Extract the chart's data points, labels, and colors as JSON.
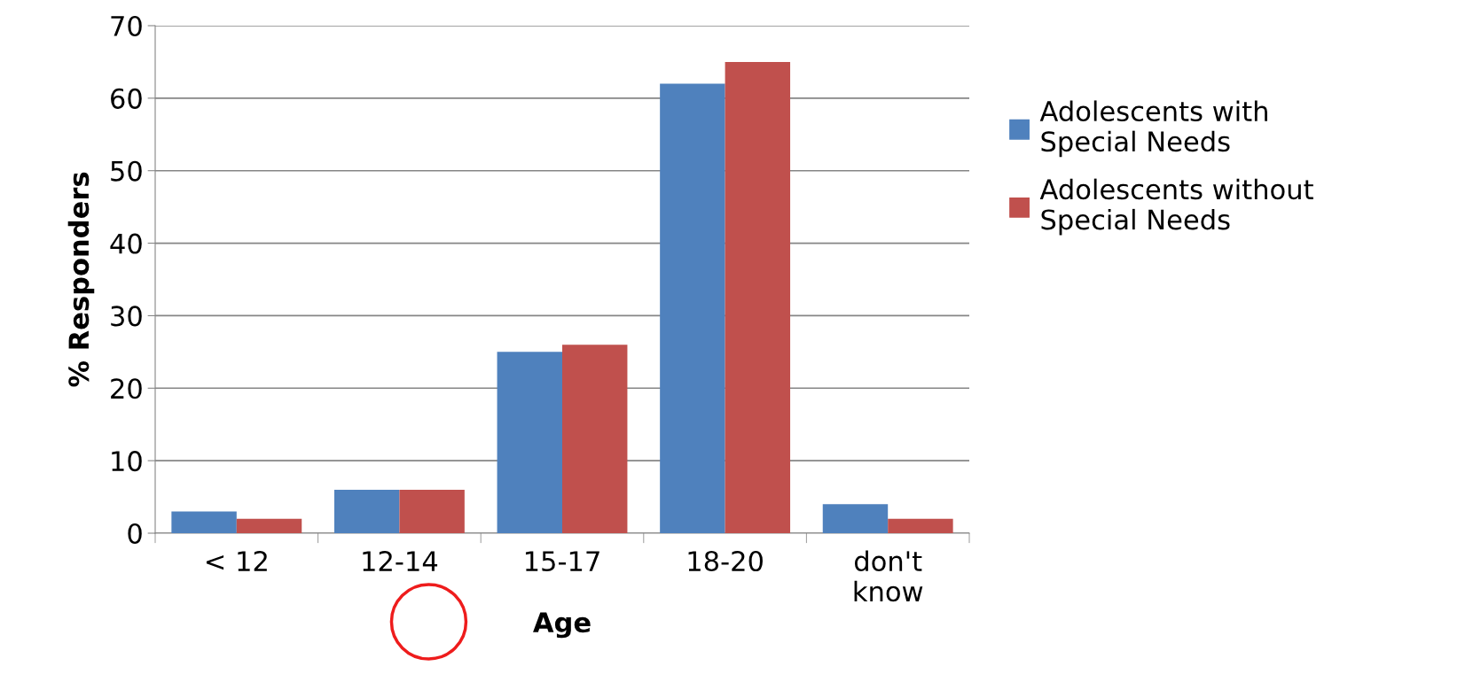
{
  "chart_data": {
    "type": "bar",
    "xlabel": "Age",
    "ylabel": "% Responders",
    "categories": [
      "< 12",
      "12-14",
      "15-17",
      "18-20",
      "don't know"
    ],
    "series": [
      {
        "name": "Adolescents with Special Needs",
        "color": "#4f81bd",
        "values": [
          3,
          6,
          25,
          62,
          4
        ]
      },
      {
        "name": "Adolescents without Special Needs",
        "color": "#c0504d",
        "values": [
          2,
          6,
          26,
          65,
          2
        ]
      }
    ],
    "ylim": [
      0,
      70
    ],
    "yticks": [
      0,
      10,
      20,
      30,
      40,
      50,
      60,
      70
    ],
    "grid": "y",
    "legend": "right"
  }
}
